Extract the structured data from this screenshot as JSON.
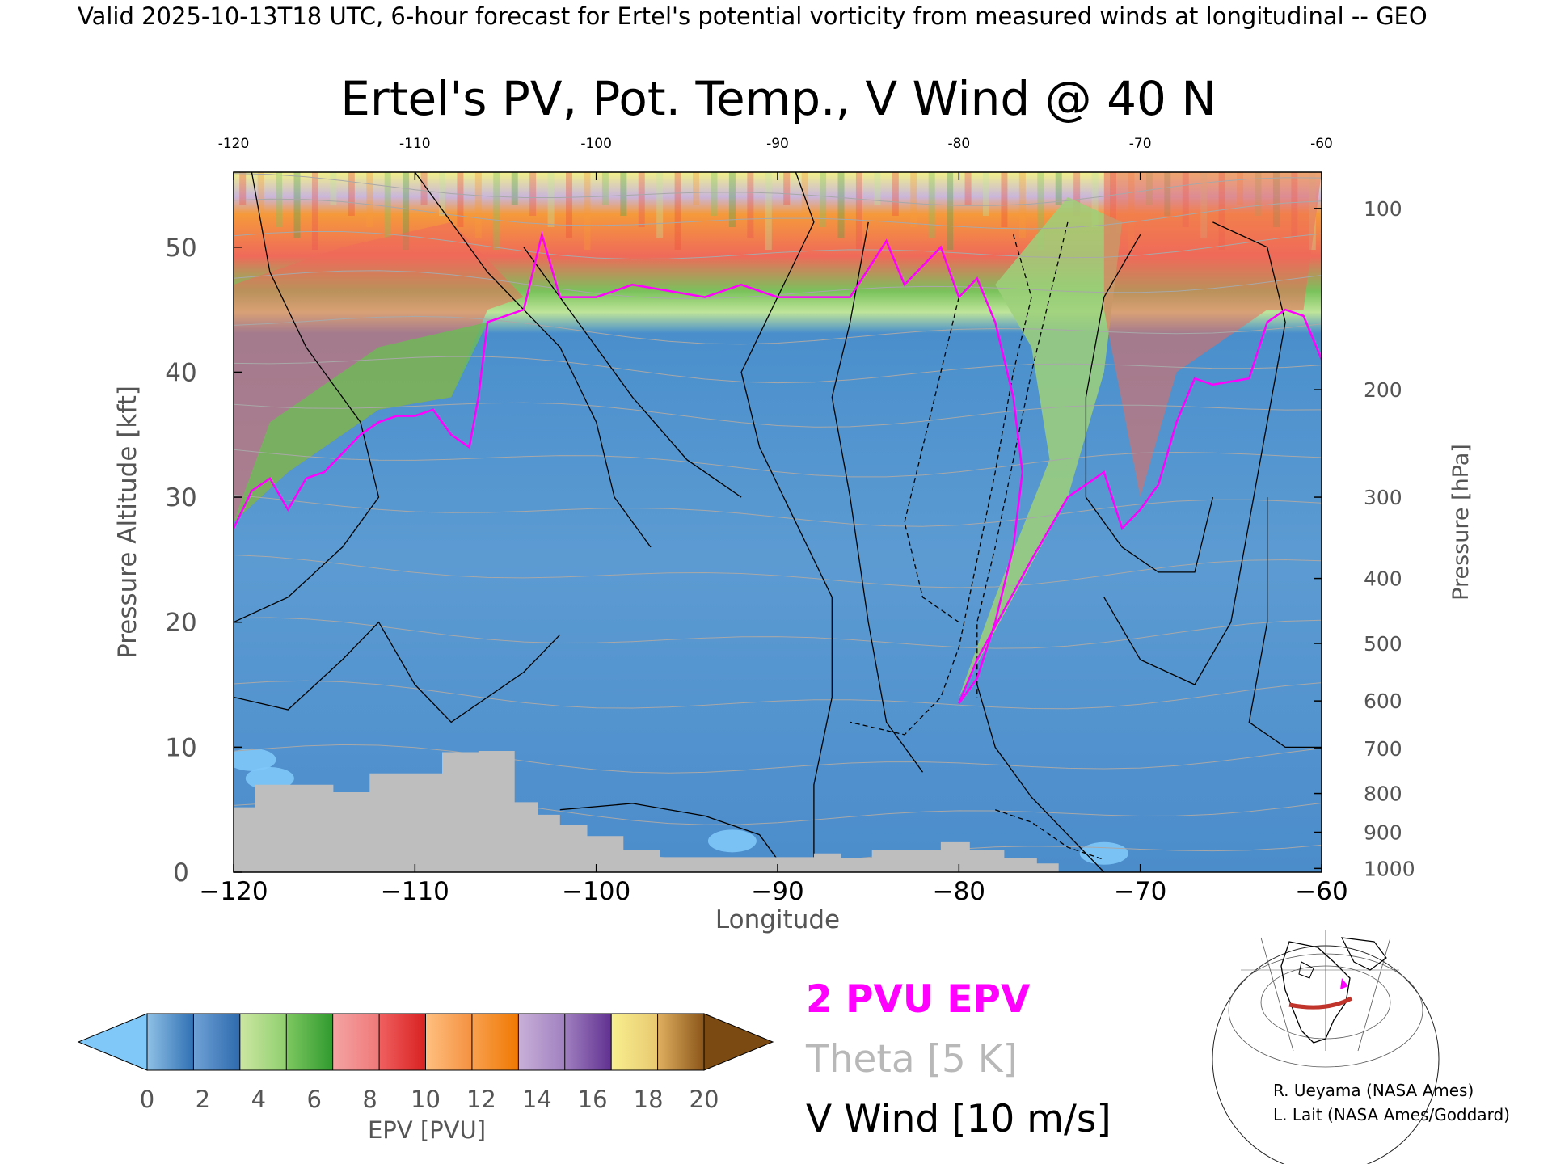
{
  "header": {
    "valid_line": "Valid 2025-10-13T18 UTC, 6-hour forecast for Ertel's potential vorticity from measured winds at longitudinal -- GEO"
  },
  "chart_data": {
    "type": "heatmap",
    "title": "Ertel's PV, Pot. Temp., V Wind @ 40 N",
    "xlabel": "Longitude",
    "ylabel_left": "Pressure Altitude [kft]",
    "ylabel_right": "Pressure [hPa]",
    "xlim": [
      -120,
      -60
    ],
    "ylim": [
      0,
      56
    ],
    "x_ticks_bottom": [
      "−120",
      "−110",
      "−100",
      "−90",
      "−80",
      "−70",
      "−60"
    ],
    "x_ticks_top": [
      "-120",
      "-110",
      "-100",
      "-90",
      "-80",
      "-70",
      "-60"
    ],
    "x_tick_values": [
      -120,
      -110,
      -100,
      -90,
      -80,
      -70,
      -60
    ],
    "y_ticks": [
      {
        "value": 0,
        "label": "0"
      },
      {
        "value": 10,
        "label": "10"
      },
      {
        "value": 20,
        "label": "20"
      },
      {
        "value": 30,
        "label": "30"
      },
      {
        "value": 40,
        "label": "40"
      },
      {
        "value": 50,
        "label": "50"
      }
    ],
    "pressure_ticks": [
      {
        "kft": 0.3,
        "label": "1000"
      },
      {
        "kft": 3.2,
        "label": "900"
      },
      {
        "kft": 6.3,
        "label": "800"
      },
      {
        "kft": 9.9,
        "label": "700"
      },
      {
        "kft": 13.7,
        "label": "600"
      },
      {
        "kft": 18.3,
        "label": "500"
      },
      {
        "kft": 23.5,
        "label": "400"
      },
      {
        "kft": 30.0,
        "label": "300"
      },
      {
        "kft": 38.6,
        "label": "200"
      },
      {
        "kft": 53.1,
        "label": "100"
      }
    ],
    "terrain_kft": [
      [
        -120.0,
        5.2
      ],
      [
        -118.8,
        5.2
      ],
      [
        -118.8,
        7.0
      ],
      [
        -114.5,
        7.0
      ],
      [
        -114.5,
        6.4
      ],
      [
        -112.5,
        6.4
      ],
      [
        -112.5,
        7.9
      ],
      [
        -108.5,
        7.9
      ],
      [
        -108.5,
        9.6
      ],
      [
        -106.5,
        9.6
      ],
      [
        -106.5,
        9.7
      ],
      [
        -104.5,
        9.7
      ],
      [
        -104.5,
        5.6
      ],
      [
        -103.2,
        5.6
      ],
      [
        -103.2,
        4.6
      ],
      [
        -102.0,
        4.6
      ],
      [
        -102.0,
        3.8
      ],
      [
        -100.5,
        3.8
      ],
      [
        -100.5,
        2.9
      ],
      [
        -98.5,
        2.9
      ],
      [
        -98.5,
        1.8
      ],
      [
        -96.5,
        1.8
      ],
      [
        -96.5,
        1.2
      ],
      [
        -88.0,
        1.2
      ],
      [
        -88.0,
        1.5
      ],
      [
        -86.5,
        1.5
      ],
      [
        -86.5,
        1.1
      ],
      [
        -84.8,
        1.1
      ],
      [
        -84.8,
        1.8
      ],
      [
        -81.0,
        1.8
      ],
      [
        -81.0,
        2.4
      ],
      [
        -79.4,
        2.4
      ],
      [
        -79.4,
        1.8
      ],
      [
        -77.5,
        1.8
      ],
      [
        -77.5,
        1.1
      ],
      [
        -75.7,
        1.1
      ],
      [
        -75.7,
        0.7
      ],
      [
        -74.5,
        0.7
      ],
      [
        -74.5,
        0.0
      ]
    ],
    "tropopause_2pvu_kft": [
      [
        -120,
        27.5
      ],
      [
        -119,
        30.5
      ],
      [
        -118,
        31.5
      ],
      [
        -117,
        29.0
      ],
      [
        -116,
        31.5
      ],
      [
        -115,
        32.0
      ],
      [
        -114,
        33.5
      ],
      [
        -113,
        35.0
      ],
      [
        -112,
        36.0
      ],
      [
        -111,
        36.5
      ],
      [
        -110,
        36.5
      ],
      [
        -109,
        37.0
      ],
      [
        -108,
        35.0
      ],
      [
        -107,
        34.0
      ],
      [
        -106.5,
        38.0
      ],
      [
        -106,
        44.0
      ],
      [
        -104,
        45.0
      ],
      [
        -103,
        51.0
      ],
      [
        -102,
        46.0
      ],
      [
        -100,
        46.0
      ],
      [
        -98,
        47.0
      ],
      [
        -96,
        46.5
      ],
      [
        -94,
        46.0
      ],
      [
        -92,
        47.0
      ],
      [
        -90,
        46.0
      ],
      [
        -88,
        46.0
      ],
      [
        -86,
        46.0
      ],
      [
        -84,
        50.5
      ],
      [
        -83,
        47.0
      ],
      [
        -81,
        50.0
      ],
      [
        -80,
        46.0
      ],
      [
        -79,
        47.5
      ],
      [
        -78,
        44.0
      ],
      [
        -77,
        38.0
      ],
      [
        -76.5,
        32.0
      ],
      [
        -77,
        26.0
      ],
      [
        -78,
        20.0
      ],
      [
        -79,
        15.5
      ],
      [
        -80,
        13.5
      ],
      [
        -79,
        17.0
      ],
      [
        -77.5,
        21.0
      ],
      [
        -76,
        25.0
      ],
      [
        -75,
        27.5
      ],
      [
        -74,
        30.0
      ],
      [
        -72,
        32.0
      ],
      [
        -71,
        27.5
      ],
      [
        -70,
        29.0
      ],
      [
        -69,
        31.0
      ],
      [
        -68,
        36.0
      ],
      [
        -67,
        39.5
      ],
      [
        -66,
        39.0
      ],
      [
        -64,
        39.5
      ],
      [
        -63,
        44.0
      ],
      [
        -62,
        45.0
      ],
      [
        -61,
        44.5
      ],
      [
        -60,
        41.0
      ]
    ],
    "theta_levels_K": [
      300,
      310,
      320,
      330,
      340,
      350,
      360,
      380,
      400,
      420,
      440,
      460,
      480
    ],
    "colorbar": {
      "label": "EPV [PVU]",
      "ticks": [
        "0",
        "2",
        "4",
        "6",
        "8",
        "10",
        "12",
        "14",
        "16",
        "18",
        "20"
      ],
      "tick_values": [
        0,
        2,
        4,
        6,
        8,
        10,
        12,
        14,
        16,
        18,
        20
      ],
      "under_color": "#80c8f8",
      "over_color": "#7a4a12",
      "segments": [
        [
          "#8fc1e6",
          "#2f6fb3"
        ],
        [
          "#6fa2d6",
          "#2d69ad"
        ],
        [
          "#cde6a2",
          "#8fcf6e"
        ],
        [
          "#7ec860",
          "#2f9a2f"
        ],
        [
          "#f4a4a4",
          "#f07878"
        ],
        [
          "#f06060",
          "#d82020"
        ],
        [
          "#ffc080",
          "#f49040"
        ],
        [
          "#f8a050",
          "#f07800"
        ],
        [
          "#c8b0d8",
          "#a080c0"
        ],
        [
          "#a080c0",
          "#603090"
        ],
        [
          "#f8f090",
          "#e8c870"
        ],
        [
          "#e0b060",
          "#8a5418"
        ]
      ]
    },
    "legend_entries": [
      {
        "label": "2 PVU EPV",
        "color": "#ff00ff"
      },
      {
        "label": "Theta [5 K]",
        "color": "#b8b8b8"
      },
      {
        "label": "V Wind [10 m/s]",
        "color": "#000000"
      }
    ],
    "grid": false
  },
  "credits": [
    "R. Ueyama (NASA Ames)",
    "L. Lait (NASA Ames/Goddard)"
  ]
}
